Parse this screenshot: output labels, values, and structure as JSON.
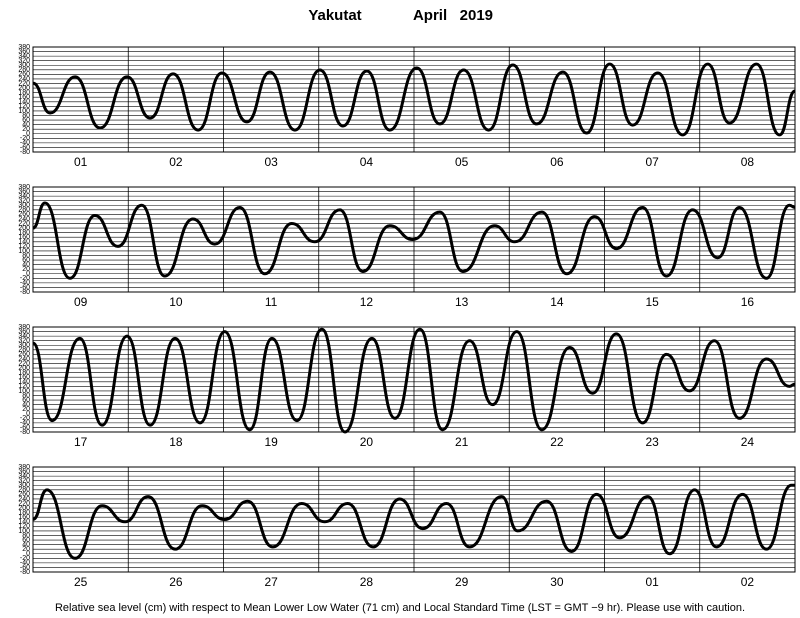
{
  "title": "Yakutat",
  "subtitle": "April   2019",
  "note": "Relative sea level (cm) with respect to Mean Lower Low Water (71 cm) and Local Standard Time (LST = GMT −9 hr). Please use with caution.",
  "chart_data": [
    {
      "type": "line",
      "categories": [
        "01",
        "02",
        "03",
        "04",
        "05",
        "06",
        "07",
        "08"
      ],
      "x": [
        0,
        4.3,
        10.6,
        16.9,
        23.7,
        29.5,
        35.3,
        41.6,
        47.6,
        53.9,
        59.7,
        66.0,
        72.3,
        78.1,
        84.1,
        89.9,
        96.7,
        102.5,
        108.5,
        114.8,
        120.9,
        126.9,
        133.5,
        139.5,
        145.3,
        151.1,
        157.4,
        163.7,
        170.0,
        175.5,
        182.3,
        188.1,
        192
      ],
      "values": [
        222,
        91,
        249,
        25,
        249,
        69,
        262,
        16,
        266,
        52,
        270,
        16,
        279,
        34,
        275,
        16,
        288,
        43,
        279,
        16,
        301,
        43,
        270,
        3,
        305,
        38,
        266,
        -5,
        305,
        47,
        305,
        -5,
        187
      ],
      "color": "#000000",
      "xlim": [
        0,
        192
      ],
      "ylim": [
        -80,
        380
      ],
      "yticks": [
        -80,
        -60,
        -40,
        -20,
        0,
        20,
        40,
        60,
        80,
        100,
        120,
        140,
        160,
        180,
        200,
        220,
        240,
        260,
        280,
        300,
        320,
        340,
        360,
        380
      ]
    },
    {
      "type": "line",
      "categories": [
        "09",
        "10",
        "11",
        "12",
        "13",
        "14",
        "15",
        "16"
      ],
      "x": [
        0,
        3.0,
        9.3,
        15.6,
        21.4,
        27.4,
        33.2,
        40.3,
        45.8,
        52.1,
        58.4,
        65.2,
        71.0,
        77.3,
        83.1,
        89.9,
        95.7,
        102.5,
        108.3,
        116.3,
        121.4,
        128.2,
        134.5,
        141.5,
        147.0,
        153.6,
        159.6,
        166.2,
        172.5,
        178.0,
        184.8,
        190.6,
        192
      ],
      "values": [
        200,
        310,
        -20,
        255,
        120,
        300,
        -10,
        240,
        130,
        290,
        0,
        220,
        140,
        280,
        10,
        210,
        150,
        270,
        10,
        210,
        140,
        270,
        0,
        250,
        110,
        290,
        -10,
        280,
        70,
        290,
        -20,
        300,
        290
      ],
      "color": "#000000",
      "xlim": [
        0,
        192
      ],
      "ylim": [
        -80,
        380
      ],
      "yticks": [
        -80,
        -60,
        -40,
        -20,
        0,
        20,
        40,
        60,
        80,
        100,
        120,
        140,
        160,
        180,
        200,
        220,
        240,
        260,
        280,
        300,
        320,
        340,
        360,
        380
      ]
    },
    {
      "type": "line",
      "categories": [
        "17",
        "18",
        "19",
        "20",
        "21",
        "22",
        "23",
        "24"
      ],
      "x": [
        0,
        4.8,
        11.8,
        17.4,
        23.7,
        29.5,
        35.8,
        42.1,
        48.3,
        54.6,
        60.2,
        66.5,
        72.8,
        78.6,
        85.4,
        91.2,
        97.5,
        103.2,
        110.0,
        115.8,
        121.9,
        128.2,
        135.2,
        141.0,
        147.0,
        153.6,
        159.6,
        165.4,
        171.7,
        178.0,
        184.8,
        190.6,
        192
      ],
      "values": [
        310,
        -30,
        330,
        -50,
        340,
        -50,
        330,
        -40,
        360,
        -70,
        330,
        -30,
        370,
        -80,
        330,
        -20,
        370,
        -70,
        320,
        40,
        360,
        -70,
        290,
        90,
        350,
        -40,
        260,
        100,
        320,
        -20,
        240,
        120,
        130
      ],
      "color": "#000000",
      "xlim": [
        0,
        192
      ],
      "ylim": [
        -80,
        380
      ],
      "yticks": [
        -80,
        -60,
        -40,
        -20,
        0,
        20,
        40,
        60,
        80,
        100,
        120,
        140,
        160,
        180,
        200,
        220,
        240,
        260,
        280,
        300,
        320,
        340,
        360,
        380
      ]
    },
    {
      "type": "line",
      "categories": [
        "25",
        "26",
        "27",
        "28",
        "29",
        "30",
        "01",
        "02"
      ],
      "x": [
        0,
        3.5,
        10.6,
        17.4,
        23.2,
        29.0,
        35.8,
        42.6,
        48.3,
        54.1,
        60.4,
        67.7,
        73.5,
        79.3,
        85.7,
        92.4,
        98.2,
        104.2,
        110.0,
        118.1,
        122.1,
        129.4,
        135.7,
        142.0,
        147.8,
        154.9,
        160.4,
        166.7,
        172.2,
        178.8,
        184.8,
        191.1,
        192
      ],
      "values": [
        150,
        280,
        -20,
        210,
        140,
        250,
        20,
        210,
        150,
        230,
        30,
        220,
        140,
        220,
        30,
        240,
        110,
        220,
        30,
        250,
        100,
        230,
        10,
        260,
        70,
        250,
        0,
        280,
        30,
        260,
        20,
        300,
        300
      ],
      "color": "#000000",
      "xlim": [
        0,
        192
      ],
      "ylim": [
        -80,
        380
      ],
      "yticks": [
        -80,
        -60,
        -40,
        -20,
        0,
        20,
        40,
        60,
        80,
        100,
        120,
        140,
        160,
        180,
        200,
        220,
        240,
        260,
        280,
        300,
        320,
        340,
        360,
        380
      ]
    }
  ]
}
